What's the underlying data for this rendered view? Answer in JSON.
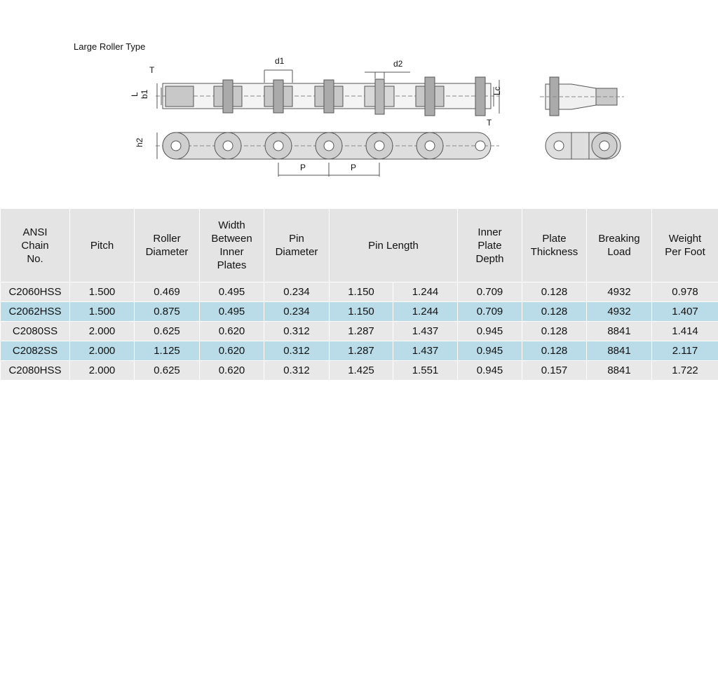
{
  "header": {
    "title": "Large Roller Type"
  },
  "diagram": {
    "labels": [
      "T",
      "L",
      "b1",
      "d1",
      "d2",
      "Lc",
      "T",
      "h2",
      "P",
      "P"
    ]
  },
  "table": {
    "headers": [
      "ANSI\nChain\nNo.",
      "Pitch",
      "Roller\nDiameter",
      "Width\nBetween\nInner\nPlates",
      "Pin\nDiameter",
      "Pin Length",
      "Inner\nPlate\nDepth",
      "Plate\nThickness",
      "Breaking\nLoad",
      "Weight\nPer Foot"
    ],
    "rows": [
      [
        "C2060HSS",
        "1.500",
        "0.469",
        "0.495",
        "0.234",
        "1.150",
        "1.244",
        "0.709",
        "0.128",
        "4932",
        "0.978"
      ],
      [
        "C2062HSS",
        "1.500",
        "0.875",
        "0.495",
        "0.234",
        "1.150",
        "1.244",
        "0.709",
        "0.128",
        "4932",
        "1.407"
      ],
      [
        "C2080SS",
        "2.000",
        "0.625",
        "0.620",
        "0.312",
        "1.287",
        "1.437",
        "0.945",
        "0.128",
        "8841",
        "1.414"
      ],
      [
        "C2082SS",
        "2.000",
        "1.125",
        "0.620",
        "0.312",
        "1.287",
        "1.437",
        "0.945",
        "0.128",
        "8841",
        "2.117"
      ],
      [
        "C2080HSS",
        "2.000",
        "0.625",
        "0.620",
        "0.312",
        "1.425",
        "1.551",
        "0.945",
        "0.157",
        "8841",
        "1.722"
      ]
    ]
  }
}
